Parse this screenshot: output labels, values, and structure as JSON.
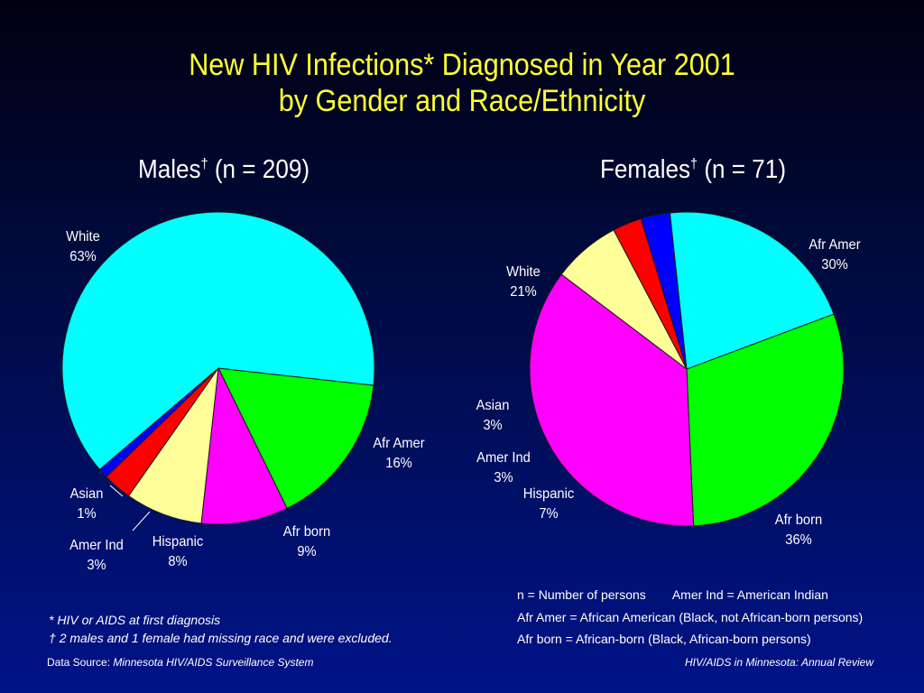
{
  "title_line1": "New HIV Infections* Diagnosed in Year 2001",
  "title_line2": "by Gender and Race/Ethnicity",
  "chart_data": [
    {
      "type": "pie",
      "title": "Males",
      "title_mark": "†",
      "title_n": "(n = 209)",
      "categories": [
        "Afr Amer",
        "Afr born",
        "Hispanic",
        "Amer Ind",
        "Asian",
        "White"
      ],
      "values": [
        16,
        9,
        8,
        3,
        1,
        63
      ],
      "labels": [
        "16%",
        "9%",
        "8%",
        "3%",
        "1%",
        "63%"
      ],
      "colors": [
        "#00ff00",
        "#ff00ff",
        "#ffff99",
        "#ff0000",
        "#0000ff",
        "#00ffff"
      ]
    },
    {
      "type": "pie",
      "title": "Females",
      "title_mark": "†",
      "title_n": "(n = 71)",
      "categories": [
        "Afr Amer",
        "Afr born",
        "Hispanic",
        "Amer Ind",
        "Asian",
        "White"
      ],
      "values": [
        30,
        36,
        7,
        3,
        3,
        21
      ],
      "labels": [
        "30%",
        "36%",
        "7%",
        "3%",
        "3%",
        "21%"
      ],
      "colors": [
        "#00ff00",
        "#ff00ff",
        "#ffff99",
        "#ff0000",
        "#0000ff",
        "#00ffff"
      ]
    }
  ],
  "legend": {
    "line1a": "n = Number of persons",
    "line1b": "Amer Ind = American Indian",
    "line2": "Afr Amer = African American (Black, not African-born persons)",
    "line3": "Afr born = African-born (Black, African-born persons)"
  },
  "notes": {
    "note1": "* HIV or AIDS at first diagnosis",
    "note2_mark": "†",
    "note2": "2 males and 1 female had missing race and were excluded."
  },
  "footer": {
    "source_label": "Data Source:",
    "source_name": "Minnesota HIV/AIDS Surveillance System",
    "review": "HIV/AIDS in Minnesota: Annual Review"
  }
}
